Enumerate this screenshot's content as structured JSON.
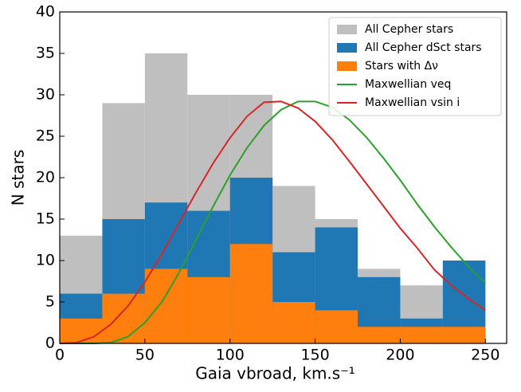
{
  "chart_data": {
    "type": "histogram",
    "xlabel": "Gaia vbroad, km.s⁻¹",
    "ylabel": "N stars",
    "bins": [
      0,
      25,
      50,
      75,
      100,
      125,
      150,
      175,
      200,
      225,
      250
    ],
    "series": [
      {
        "name": "All Cepher stars",
        "color": "#bfbfbf",
        "values": [
          13,
          29,
          35,
          30,
          30,
          19,
          15,
          9,
          7,
          10
        ]
      },
      {
        "name": "All Cepher dSct stars",
        "color": "#1f77b4",
        "values": [
          6,
          15,
          17,
          16,
          20,
          11,
          14,
          8,
          3,
          10
        ]
      },
      {
        "name": "Stars with Δν",
        "color": "#ff7f0e",
        "values": [
          3,
          6,
          9,
          8,
          12,
          5,
          4,
          2,
          2,
          2
        ]
      }
    ],
    "curves": [
      {
        "name": "Maxwellian veq",
        "color": "#2ca02c",
        "x": [
          0,
          10,
          20,
          30,
          40,
          50,
          60,
          70,
          80,
          90,
          100,
          110,
          120,
          130,
          140,
          150,
          160,
          170,
          180,
          190,
          200,
          210,
          220,
          230,
          240,
          250
        ],
        "values": [
          0,
          0,
          0,
          0.1,
          0.8,
          2.5,
          5,
          8.5,
          12.5,
          16.5,
          20.3,
          23.6,
          26.3,
          28.2,
          29.2,
          29.2,
          28.5,
          27,
          24.9,
          22.4,
          19.7,
          16.8,
          14.1,
          11.6,
          9.3,
          7.3
        ]
      },
      {
        "name": "Maxwellian vsin i",
        "color": "#d62728",
        "x": [
          0,
          10,
          20,
          30,
          40,
          50,
          60,
          70,
          80,
          90,
          100,
          110,
          120,
          130,
          140,
          150,
          160,
          170,
          180,
          190,
          200,
          210,
          220,
          230,
          240,
          250
        ],
        "values": [
          0,
          0.1,
          0.8,
          2.3,
          4.5,
          7.4,
          10.8,
          14.5,
          18.2,
          21.7,
          24.8,
          27.4,
          29.1,
          29.2,
          28.4,
          26.8,
          24.6,
          22,
          19.3,
          16.6,
          13.9,
          11.5,
          8.9,
          7,
          5.4,
          4
        ]
      }
    ],
    "xlim": [
      0,
      262.5
    ],
    "ylim": [
      0,
      40
    ],
    "xticks": [
      0,
      50,
      100,
      150,
      200,
      250
    ],
    "yticks": [
      0,
      5,
      10,
      15,
      20,
      25,
      30,
      35,
      40
    ],
    "legend": "upper right"
  }
}
